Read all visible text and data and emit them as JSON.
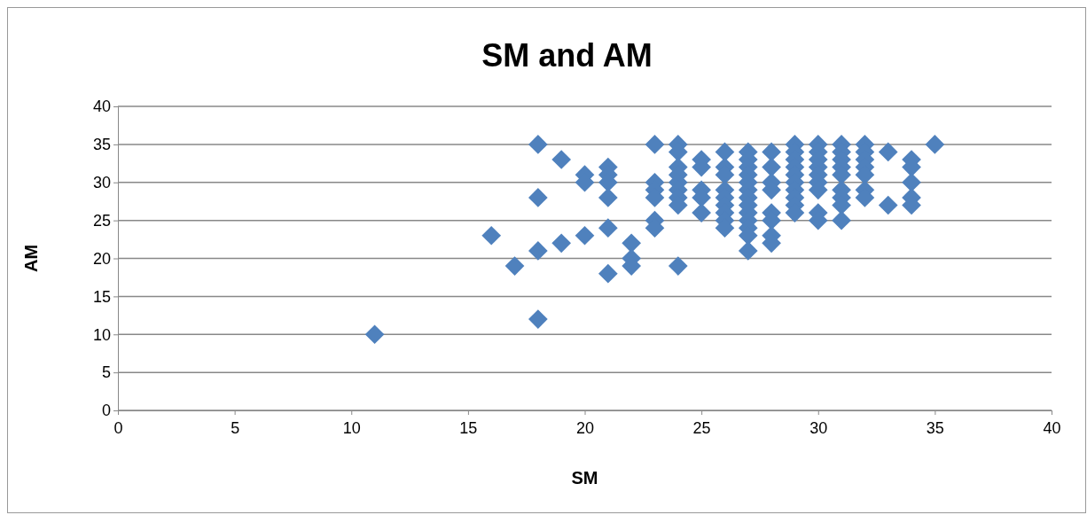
{
  "chart_data": {
    "type": "scatter",
    "title": "SM and AM",
    "xlabel": "SM",
    "ylabel": "AM",
    "xlim": [
      0,
      40
    ],
    "xticks": [
      0,
      5,
      10,
      15,
      20,
      25,
      30,
      35,
      40
    ],
    "ylim": [
      0,
      40
    ],
    "yticks": [
      0,
      5,
      10,
      15,
      20,
      25,
      30,
      35,
      40
    ],
    "grid": "y",
    "marker": "diamond",
    "legend": false,
    "series": [
      {
        "color": "#4f81bd",
        "x": [
          11,
          16,
          17,
          18,
          18,
          18,
          18,
          19,
          19,
          20,
          20,
          20,
          21,
          21,
          21,
          21,
          21,
          21,
          22,
          22,
          22,
          23,
          23,
          23,
          23,
          23,
          23,
          24,
          24,
          24,
          24,
          24,
          24,
          24,
          24,
          24,
          25,
          25,
          25,
          25,
          25,
          26,
          26,
          26,
          26,
          26,
          26,
          26,
          26,
          26,
          27,
          27,
          27,
          27,
          27,
          27,
          27,
          27,
          27,
          27,
          27,
          27,
          27,
          28,
          28,
          28,
          28,
          28,
          28,
          28,
          28,
          29,
          29,
          29,
          29,
          29,
          29,
          29,
          29,
          29,
          29,
          30,
          30,
          30,
          30,
          30,
          30,
          30,
          30,
          30,
          31,
          31,
          31,
          31,
          31,
          31,
          31,
          31,
          31,
          32,
          32,
          32,
          32,
          32,
          32,
          32,
          33,
          33,
          34,
          34,
          34,
          34,
          34,
          35
        ],
        "values": [
          10,
          23,
          19,
          35,
          28,
          21,
          12,
          33,
          22,
          31,
          30,
          23,
          32,
          31,
          30,
          28,
          24,
          18,
          22,
          20,
          19,
          35,
          30,
          29,
          28,
          25,
          24,
          35,
          34,
          32,
          31,
          30,
          29,
          28,
          27,
          19,
          33,
          32,
          29,
          28,
          26,
          34,
          32,
          31,
          29,
          28,
          27,
          26,
          25,
          24,
          34,
          33,
          32,
          31,
          30,
          29,
          28,
          27,
          26,
          25,
          24,
          23,
          21,
          34,
          32,
          30,
          29,
          26,
          25,
          23,
          22,
          35,
          34,
          33,
          32,
          31,
          30,
          29,
          28,
          27,
          26,
          35,
          34,
          33,
          32,
          31,
          30,
          29,
          26,
          25,
          35,
          34,
          33,
          32,
          31,
          29,
          28,
          27,
          25,
          35,
          34,
          33,
          32,
          31,
          29,
          28,
          34,
          27,
          33,
          32,
          30,
          28,
          27,
          35
        ]
      }
    ]
  }
}
